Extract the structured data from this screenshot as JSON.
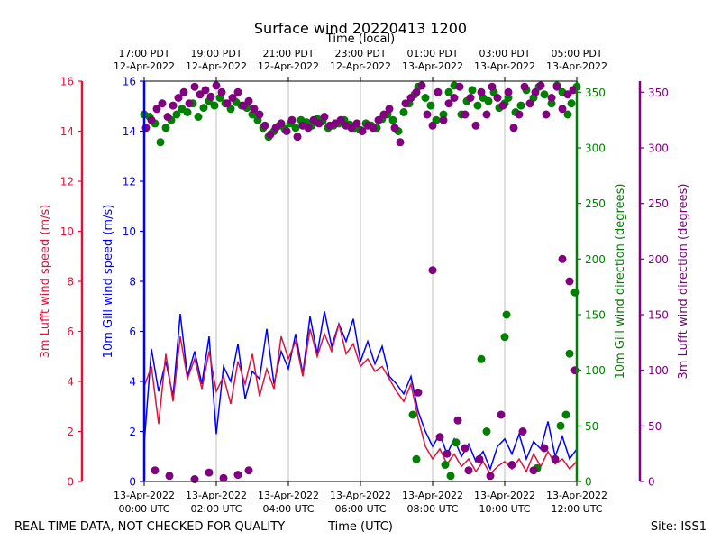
{
  "chart_data": {
    "type": "scatter",
    "title": "Surface wind 20220413 1200",
    "top_axis_label": "Time (local)",
    "xlabel": "Time (UTC)",
    "footer_left": "REAL TIME DATA, NOT CHECKED FOR QUALITY",
    "footer_right": "Site: ISS1",
    "x_unit": "hours since 13-Apr-2022 00:00 UTC",
    "xlim": [
      0,
      12
    ],
    "bottom_ticks": [
      {
        "x": 0,
        "line1": "13-Apr-2022",
        "line2": "00:00 UTC"
      },
      {
        "x": 2,
        "line1": "13-Apr-2022",
        "line2": "02:00 UTC"
      },
      {
        "x": 4,
        "line1": "13-Apr-2022",
        "line2": "04:00 UTC"
      },
      {
        "x": 6,
        "line1": "13-Apr-2022",
        "line2": "06:00 UTC"
      },
      {
        "x": 8,
        "line1": "13-Apr-2022",
        "line2": "08:00 UTC"
      },
      {
        "x": 10,
        "line1": "13-Apr-2022",
        "line2": "10:00 UTC"
      },
      {
        "x": 12,
        "line1": "13-Apr-2022",
        "line2": "12:00 UTC"
      }
    ],
    "top_ticks": [
      {
        "x": 0,
        "line1": "17:00 PDT",
        "line2": "12-Apr-2022"
      },
      {
        "x": 2,
        "line1": "19:00 PDT",
        "line2": "12-Apr-2022"
      },
      {
        "x": 4,
        "line1": "21:00 PDT",
        "line2": "12-Apr-2022"
      },
      {
        "x": 6,
        "line1": "23:00 PDT",
        "line2": "12-Apr-2022"
      },
      {
        "x": 8,
        "line1": "01:00 PDT",
        "line2": "13-Apr-2022"
      },
      {
        "x": 10,
        "line1": "03:00 PDT",
        "line2": "13-Apr-2022"
      },
      {
        "x": 12,
        "line1": "05:00 PDT",
        "line2": "13-Apr-2022"
      }
    ],
    "axes": {
      "lufft_speed": {
        "label": "3m Lufft wind speed (m/s)",
        "color": "#dc143c",
        "ylim": [
          0,
          16
        ],
        "ticks": [
          0,
          2,
          4,
          6,
          8,
          10,
          12,
          14,
          16
        ]
      },
      "gill_speed": {
        "label": "10m Gill wind speed (m/s)",
        "color": "#0000ff",
        "ylim": [
          0,
          16
        ],
        "ticks": [
          0,
          2,
          4,
          6,
          8,
          10,
          12,
          14,
          16
        ]
      },
      "gill_dir": {
        "label": "10m Gill wind direction (degrees)",
        "color": "#008000",
        "ylim": [
          0,
          360
        ],
        "ticks": [
          0,
          50,
          100,
          150,
          200,
          250,
          300,
          350
        ]
      },
      "lufft_dir": {
        "label": "3m Lufft wind direction (degrees)",
        "color": "#800080",
        "ylim": [
          0,
          360
        ],
        "ticks": [
          0,
          50,
          100,
          150,
          200,
          250,
          300,
          350
        ]
      }
    },
    "series": [
      {
        "name": "10m Gill wind speed",
        "type": "line",
        "axis": "gill_speed",
        "color": "#0000ff",
        "x": [
          0.0,
          0.2,
          0.4,
          0.6,
          0.8,
          1.0,
          1.2,
          1.4,
          1.6,
          1.8,
          2.0,
          2.2,
          2.4,
          2.6,
          2.8,
          3.0,
          3.2,
          3.4,
          3.6,
          3.8,
          4.0,
          4.2,
          4.4,
          4.6,
          4.8,
          5.0,
          5.2,
          5.4,
          5.6,
          5.8,
          6.0,
          6.2,
          6.4,
          6.6,
          6.8,
          7.0,
          7.2,
          7.4,
          7.6,
          7.8,
          8.0,
          8.2,
          8.4,
          8.6,
          8.8,
          9.0,
          9.2,
          9.4,
          9.6,
          9.8,
          10.0,
          10.2,
          10.4,
          10.6,
          10.8,
          11.0,
          11.2,
          11.4,
          11.6,
          11.8,
          12.0
        ],
        "y": [
          1.5,
          5.3,
          3.6,
          4.8,
          3.4,
          6.7,
          4.2,
          5.2,
          3.9,
          5.8,
          1.9,
          4.6,
          4.0,
          5.5,
          3.3,
          4.4,
          4.1,
          6.1,
          3.9,
          5.2,
          4.5,
          5.9,
          4.3,
          6.6,
          5.1,
          6.8,
          5.4,
          6.3,
          5.6,
          6.5,
          4.8,
          5.6,
          4.7,
          5.4,
          4.2,
          3.9,
          3.5,
          4.2,
          2.8,
          2.0,
          1.4,
          1.9,
          1.1,
          1.7,
          1.0,
          1.5,
          0.8,
          1.2,
          0.5,
          1.4,
          1.7,
          1.1,
          1.9,
          0.9,
          1.6,
          1.3,
          2.4,
          1.0,
          1.8,
          0.9,
          1.3
        ]
      },
      {
        "name": "3m Lufft wind speed",
        "type": "line",
        "axis": "lufft_speed",
        "color": "#dc143c",
        "x": [
          0.0,
          0.2,
          0.4,
          0.6,
          0.8,
          1.0,
          1.2,
          1.4,
          1.6,
          1.8,
          2.0,
          2.2,
          2.4,
          2.6,
          2.8,
          3.0,
          3.2,
          3.4,
          3.6,
          3.8,
          4.0,
          4.2,
          4.4,
          4.6,
          4.8,
          5.0,
          5.2,
          5.4,
          5.6,
          5.8,
          6.0,
          6.2,
          6.4,
          6.6,
          6.8,
          7.0,
          7.2,
          7.4,
          7.6,
          7.8,
          8.0,
          8.2,
          8.4,
          8.6,
          8.8,
          9.0,
          9.2,
          9.4,
          9.6,
          9.8,
          10.0,
          10.2,
          10.4,
          10.6,
          10.8,
          11.0,
          11.2,
          11.4,
          11.6,
          11.8,
          12.0
        ],
        "y": [
          3.8,
          4.6,
          2.3,
          5.1,
          3.2,
          5.8,
          4.1,
          4.9,
          3.7,
          5.2,
          3.6,
          4.2,
          3.1,
          4.8,
          3.9,
          5.1,
          3.4,
          4.5,
          3.7,
          5.8,
          4.9,
          5.6,
          4.2,
          6.1,
          5.0,
          5.9,
          5.2,
          6.3,
          5.1,
          5.5,
          4.6,
          4.9,
          4.4,
          4.6,
          4.1,
          3.6,
          3.2,
          3.9,
          2.5,
          1.4,
          0.9,
          1.3,
          0.7,
          1.1,
          0.6,
          0.9,
          0.4,
          0.8,
          0.3,
          0.6,
          0.8,
          0.5,
          0.9,
          0.4,
          1.1,
          0.6,
          1.2,
          0.7,
          0.9,
          0.5,
          0.8
        ]
      },
      {
        "name": "10m Gill wind direction",
        "type": "scatter",
        "axis": "gill_dir",
        "color": "#008000",
        "x": [
          0.0,
          0.15,
          0.3,
          0.45,
          0.6,
          0.75,
          0.9,
          1.05,
          1.2,
          1.35,
          1.5,
          1.65,
          1.8,
          1.95,
          2.1,
          2.25,
          2.4,
          2.55,
          2.7,
          2.85,
          3.0,
          3.15,
          3.3,
          3.45,
          3.6,
          3.75,
          3.9,
          4.05,
          4.2,
          4.35,
          4.5,
          4.65,
          4.8,
          4.95,
          5.1,
          5.25,
          5.4,
          5.55,
          5.7,
          5.85,
          6.0,
          6.15,
          6.3,
          6.45,
          6.6,
          6.75,
          6.9,
          7.05,
          7.2,
          7.35,
          7.5,
          7.6,
          7.8,
          7.95,
          8.1,
          8.3,
          8.45,
          8.6,
          8.8,
          8.95,
          9.1,
          9.25,
          9.4,
          9.55,
          9.7,
          9.85,
          10.0,
          10.1,
          10.3,
          10.45,
          10.6,
          10.8,
          10.95,
          11.1,
          11.3,
          11.45,
          11.6,
          11.75,
          11.85,
          12.0,
          7.45,
          7.55,
          8.35,
          8.5,
          8.65,
          9.35,
          9.5,
          10.0,
          10.05,
          10.9,
          11.55,
          11.7,
          11.8,
          11.95
        ],
        "y": [
          330,
          328,
          322,
          305,
          318,
          325,
          330,
          335,
          332,
          340,
          328,
          336,
          342,
          338,
          345,
          340,
          335,
          341,
          338,
          336,
          330,
          325,
          318,
          310,
          315,
          320,
          317,
          322,
          318,
          325,
          323,
          320,
          326,
          324,
          318,
          320,
          322,
          325,
          321,
          318,
          316,
          322,
          320,
          318,
          326,
          330,
          325,
          315,
          332,
          340,
          348,
          355,
          345,
          338,
          325,
          330,
          350,
          356,
          330,
          342,
          352,
          338,
          345,
          342,
          350,
          336,
          340,
          345,
          332,
          338,
          352,
          345,
          355,
          348,
          340,
          356,
          350,
          330,
          340,
          355,
          60,
          20,
          15,
          5,
          35,
          110,
          45,
          130,
          150,
          12,
          50,
          60,
          115,
          170
        ]
      },
      {
        "name": "3m Lufft wind direction",
        "type": "scatter",
        "axis": "lufft_dir",
        "color": "#800080",
        "x": [
          0.05,
          0.2,
          0.35,
          0.5,
          0.65,
          0.8,
          0.95,
          1.1,
          1.25,
          1.4,
          1.55,
          1.7,
          1.85,
          2.0,
          2.15,
          2.3,
          2.45,
          2.6,
          2.75,
          2.9,
          3.05,
          3.2,
          3.35,
          3.5,
          3.65,
          3.8,
          3.95,
          4.1,
          4.25,
          4.4,
          4.55,
          4.7,
          4.85,
          5.0,
          5.15,
          5.3,
          5.45,
          5.6,
          5.75,
          5.9,
          6.05,
          6.2,
          6.35,
          6.5,
          6.65,
          6.8,
          6.95,
          7.1,
          7.25,
          7.4,
          7.55,
          7.7,
          7.85,
          8.0,
          8.15,
          8.3,
          8.45,
          8.6,
          8.75,
          8.9,
          9.05,
          9.2,
          9.35,
          9.5,
          9.65,
          9.8,
          9.95,
          10.1,
          10.25,
          10.4,
          10.55,
          10.7,
          10.85,
          11.0,
          11.15,
          11.3,
          11.45,
          11.6,
          11.75,
          11.9,
          0.3,
          0.7,
          1.4,
          1.8,
          2.2,
          2.6,
          2.9,
          7.6,
          8.0,
          8.2,
          8.4,
          8.7,
          8.9,
          9.0,
          9.3,
          9.6,
          9.9,
          10.2,
          10.5,
          10.8,
          11.1,
          11.4,
          11.6,
          11.8,
          11.95
        ],
        "y": [
          318,
          325,
          335,
          340,
          328,
          338,
          345,
          350,
          340,
          355,
          348,
          352,
          346,
          356,
          350,
          340,
          345,
          350,
          338,
          342,
          335,
          330,
          320,
          312,
          318,
          322,
          315,
          325,
          310,
          320,
          318,
          325,
          322,
          328,
          320,
          322,
          325,
          320,
          318,
          322,
          315,
          320,
          318,
          325,
          330,
          335,
          318,
          305,
          340,
          345,
          350,
          356,
          330,
          320,
          350,
          325,
          340,
          345,
          355,
          330,
          345,
          320,
          350,
          330,
          355,
          345,
          338,
          350,
          318,
          330,
          355,
          340,
          350,
          356,
          330,
          345,
          355,
          335,
          348,
          352,
          10,
          5,
          2,
          8,
          3,
          6,
          10,
          80,
          190,
          40,
          25,
          55,
          30,
          10,
          20,
          5,
          60,
          15,
          45,
          10,
          30,
          20,
          200,
          180,
          100
        ]
      }
    ]
  }
}
